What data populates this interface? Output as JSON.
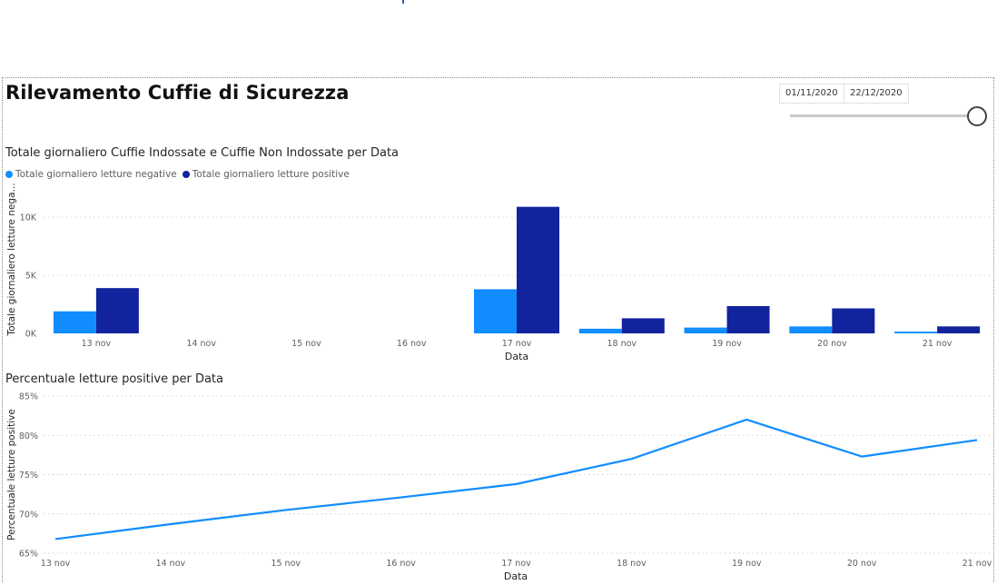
{
  "report": {
    "title": "Rilevamento Cuffie di Sicurezza",
    "date_start": "01/11/2020",
    "date_end": "22/12/2020"
  },
  "chart_data": [
    {
      "type": "bar",
      "title": "Totale giornaliero Cuffie Indossate e Cuffie Non Indossate per Data",
      "xlabel": "Data",
      "ylabel": "Totale giornaliero letture nega...",
      "categories": [
        "13 nov",
        "14 nov",
        "15 nov",
        "16 nov",
        "17 nov",
        "18 nov",
        "19 nov",
        "20 nov",
        "21 nov"
      ],
      "series": [
        {
          "name": "Totale giornaliero letture negative",
          "color": "#118dff",
          "values": [
            1900,
            0,
            0,
            0,
            3800,
            400,
            500,
            600,
            150
          ]
        },
        {
          "name": "Totale giornaliero letture positive",
          "color": "#12239e",
          "values": [
            3900,
            0,
            0,
            0,
            10900,
            1300,
            2350,
            2150,
            600
          ]
        }
      ],
      "yticks": [
        0,
        5000,
        10000
      ],
      "ytick_labels": [
        "0K",
        "5K",
        "10K"
      ],
      "ylim": [
        0,
        11500
      ],
      "legend": "top-left",
      "grid": true
    },
    {
      "type": "line",
      "title": "Percentuale letture positive per Data",
      "xlabel": "Data",
      "ylabel": "Percentuale letture positive",
      "categories": [
        "13 nov",
        "14 nov",
        "15 nov",
        "16 nov",
        "17 nov",
        "18 nov",
        "19 nov",
        "20 nov",
        "21 nov"
      ],
      "series": [
        {
          "name": "",
          "color": "#118dff",
          "values": [
            66.8,
            68.7,
            70.5,
            72.1,
            73.8,
            77.0,
            82.0,
            77.3,
            79.4
          ]
        }
      ],
      "yticks": [
        65,
        70,
        75,
        80,
        85
      ],
      "ytick_labels": [
        "65%",
        "70%",
        "75%",
        "80%",
        "85%"
      ],
      "ylim": [
        65,
        85
      ],
      "grid": true
    }
  ]
}
